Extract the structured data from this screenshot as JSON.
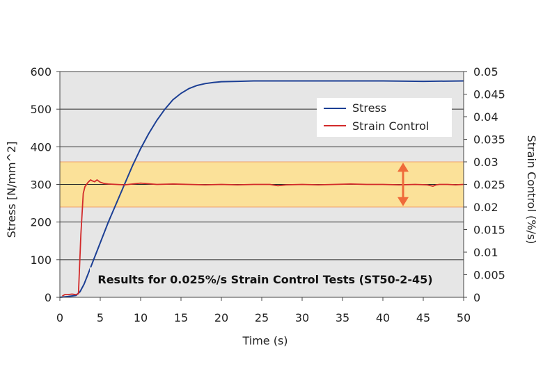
{
  "chart_data": {
    "type": "line",
    "title": "",
    "annotation": "Results for 0.025%/s Strain Control Tests (ST50-2-45)",
    "xlabel": "Time (s)",
    "ylabel": "Stress [N/mm^2]",
    "y2label": "Strain Control (%/s)",
    "xlim": [
      0,
      50
    ],
    "ylim": [
      0,
      600
    ],
    "y2lim": [
      0,
      0.05
    ],
    "x_ticks": [
      "0",
      "5",
      "10",
      "15",
      "20",
      "25",
      "30",
      "35",
      "40",
      "45",
      "50"
    ],
    "y_ticks": [
      "0",
      "100",
      "200",
      "300",
      "400",
      "500",
      "600"
    ],
    "y2_ticks": [
      "0",
      "0.005",
      "0.01",
      "0.015",
      "0.02",
      "0.025",
      "0.03",
      "0.035",
      "0.04",
      "0.045",
      "0.05"
    ],
    "grid": "horizontal",
    "legend_position": "top-right",
    "band": {
      "axis": "y2",
      "from": 0.02,
      "to": 0.03,
      "color": "#fbe199",
      "border": "#f0a06a"
    },
    "arrow": {
      "x": 42.5,
      "from": 0.0202,
      "to": 0.0298,
      "color": "#ef6a3a"
    },
    "colors": {
      "plot_bg": "#e6e6e6",
      "grid": "#2a2a2a"
    },
    "series": [
      {
        "name": "Stress",
        "axis": "y",
        "color": "#1c3f94",
        "x": [
          0,
          1,
          2,
          2.5,
          3,
          4,
          5,
          6,
          7,
          8,
          9,
          10,
          11,
          12,
          13,
          14,
          15,
          16,
          17,
          18,
          19,
          20,
          22,
          24,
          25,
          30,
          35,
          40,
          45,
          50
        ],
        "y": [
          0,
          2,
          5,
          15,
          35,
          90,
          145,
          200,
          250,
          300,
          350,
          395,
          435,
          470,
          500,
          525,
          542,
          555,
          563,
          568,
          571,
          573,
          574,
          575,
          575,
          575,
          575,
          575,
          574,
          575
        ]
      },
      {
        "name": "Strain Control",
        "axis": "y2",
        "color": "#d22a2a",
        "x": [
          0.3,
          0.6,
          1.0,
          1.5,
          2.0,
          2.3,
          2.6,
          2.9,
          3.1,
          3.5,
          3.8,
          4.0,
          4.3,
          4.6,
          5.0,
          5.5,
          6.0,
          7.0,
          8.0,
          9.0,
          10.0,
          12.0,
          14.0,
          16.0,
          18.0,
          20.0,
          22.0,
          24.0,
          26.0,
          27.0,
          28.0,
          30.0,
          32.0,
          34.0,
          36.0,
          38.0,
          40.0,
          42.0,
          44.0,
          45.5,
          46.2,
          46.6,
          47.0,
          48.0,
          49.0,
          50.0
        ],
        "y": [
          0.0003,
          0.0006,
          0.0006,
          0.0007,
          0.0006,
          0.0008,
          0.014,
          0.023,
          0.0245,
          0.0255,
          0.026,
          0.0258,
          0.0256,
          0.026,
          0.0255,
          0.0252,
          0.0251,
          0.025,
          0.0249,
          0.0251,
          0.0253,
          0.025,
          0.0251,
          0.025,
          0.0249,
          0.025,
          0.0249,
          0.025,
          0.025,
          0.0247,
          0.0249,
          0.025,
          0.0249,
          0.025,
          0.0251,
          0.025,
          0.025,
          0.0249,
          0.025,
          0.0249,
          0.0246,
          0.0249,
          0.025,
          0.025,
          0.0249,
          0.025
        ]
      }
    ]
  }
}
